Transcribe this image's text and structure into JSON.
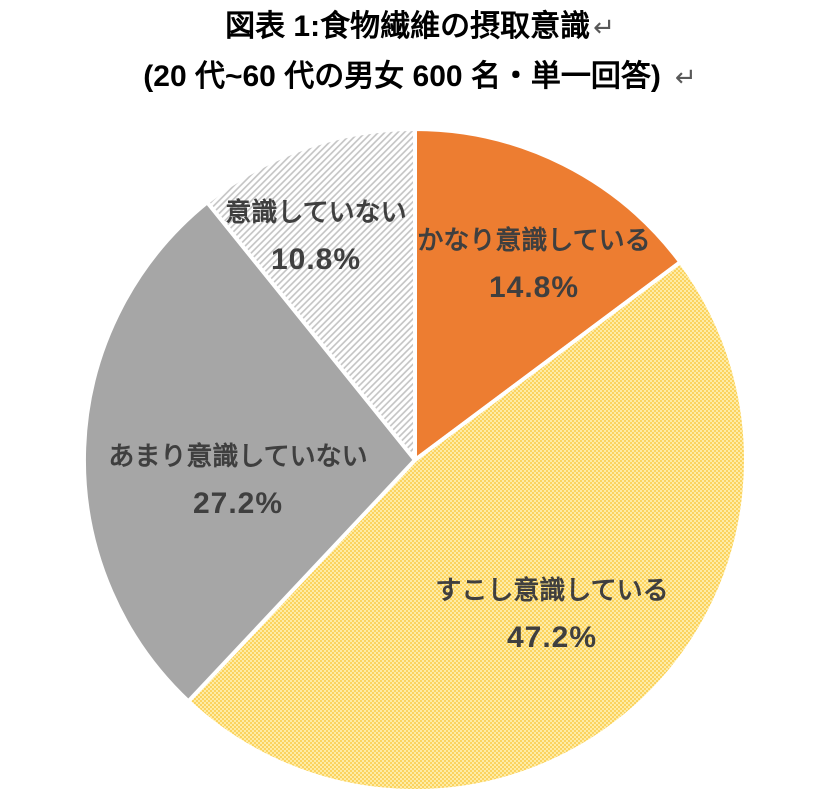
{
  "document": {
    "title_line1": "図表 1:食物繊維の摂取意識",
    "title_line2": "(20 代~60 代の男女 600 名・単一回答)",
    "return_mark": "↵"
  },
  "chart_data": {
    "type": "pie",
    "title": "図表 1:食物繊維の摂取意識",
    "subtitle": "(20 代~60 代の男女 600 名・単一回答)",
    "start_angle_deg": 0,
    "direction": "clockwise",
    "border_color": "#FFFFFF",
    "label_text_color": "#3F3F3F",
    "background": "#FFFFFF",
    "slices": [
      {
        "label": "かなり意識している",
        "value": 14.8,
        "display": "14.8%",
        "color": "#ED7D31",
        "fill_style": "solid"
      },
      {
        "label": "すこし意識している",
        "value": 47.2,
        "display": "47.2%",
        "color": "#FBD35F",
        "fill_style": "checker-dot",
        "checker_colors": [
          "#FBD35F",
          "#FEECA6"
        ]
      },
      {
        "label": "あまり意識していない",
        "value": 27.2,
        "display": "27.2%",
        "color": "#A6A6A6",
        "fill_style": "solid"
      },
      {
        "label": "意識していない",
        "value": 10.8,
        "display": "10.8%",
        "color": "#FFFFFF",
        "fill_style": "diagonal-hatch",
        "hatch_color": "#C3C3C3"
      }
    ]
  }
}
